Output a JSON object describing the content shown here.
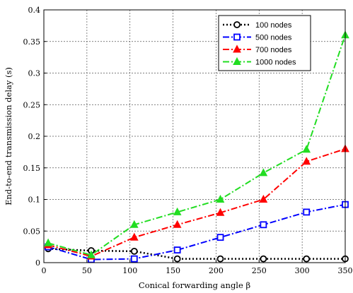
{
  "chart_data": {
    "type": "line",
    "xlabel": "Conical forwarding angle β",
    "ylabel": "End-to-end transmission delay (s)",
    "x": [
      5,
      55,
      105,
      155,
      205,
      255,
      305,
      350
    ],
    "xlim": [
      0,
      350
    ],
    "ylim": [
      0,
      0.4
    ],
    "xticks": [
      0,
      50,
      100,
      150,
      200,
      250,
      300,
      350
    ],
    "xtick_labels": [
      "0",
      "50",
      "100",
      "150",
      "200",
      "250",
      "300",
      "350"
    ],
    "yticks": [
      0,
      0.05,
      0.1,
      0.15,
      0.2,
      0.25,
      0.3,
      0.35,
      0.4
    ],
    "ytick_labels": [
      "0",
      "0.05",
      "0.1",
      "0.15",
      "0.2",
      "0.25",
      "0.3",
      "0.35",
      "0.4"
    ],
    "grid": true,
    "legend_position": "top-right",
    "series": [
      {
        "name": "100 nodes",
        "values": [
          0.022,
          0.019,
          0.018,
          0.006,
          0.006,
          0.006,
          0.006,
          0.006
        ],
        "color": "#000000",
        "marker": "circle",
        "linestyle": "dotted"
      },
      {
        "name": "500 nodes",
        "values": [
          0.025,
          0.005,
          0.006,
          0.02,
          0.04,
          0.06,
          0.08,
          0.092
        ],
        "color": "#0000ff",
        "marker": "square",
        "linestyle": "dashdot"
      },
      {
        "name": "700 nodes",
        "values": [
          0.028,
          0.01,
          0.04,
          0.06,
          0.079,
          0.1,
          0.16,
          0.18
        ],
        "color": "#ff0000",
        "marker": "triangle",
        "linestyle": "dashdot"
      },
      {
        "name": "1000 nodes",
        "values": [
          0.031,
          0.012,
          0.06,
          0.08,
          0.1,
          0.142,
          0.179,
          0.36
        ],
        "color": "#22dd22",
        "marker": "triangle",
        "linestyle": "dashdot"
      }
    ]
  }
}
